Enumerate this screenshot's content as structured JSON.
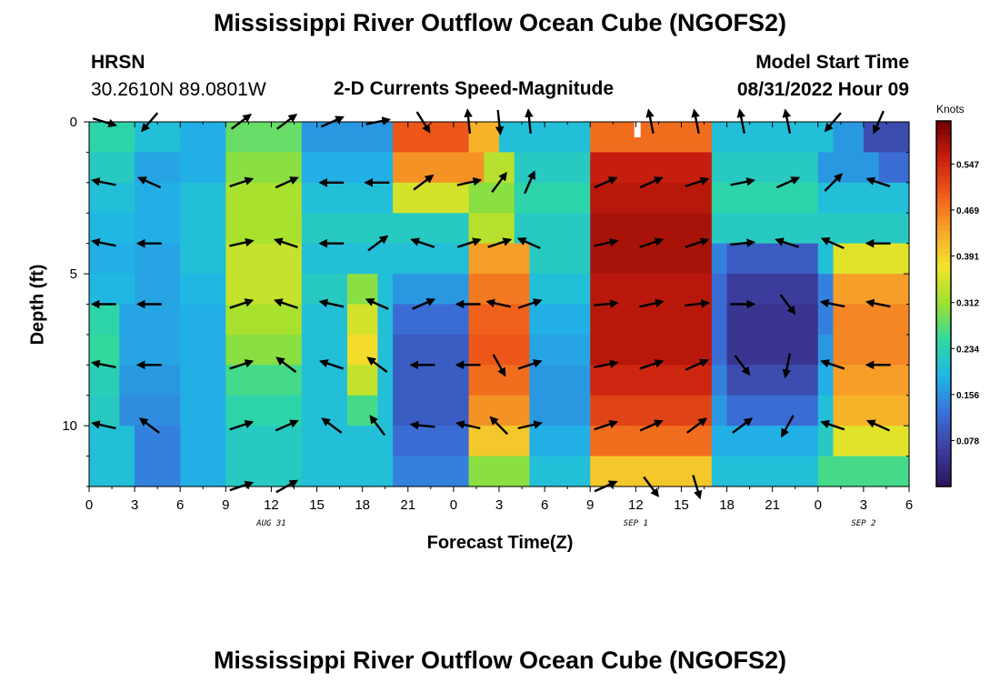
{
  "header": {
    "title": "Mississippi River Outflow Ocean Cube (NGOFS2)",
    "station_name": "HRSN",
    "station_coords": "30.2610N  89.0801W",
    "plot_title": "2-D Currents Speed-Magnitude",
    "model_start_label": "Model Start Time",
    "model_start_value": "08/31/2022 Hour 09"
  },
  "footer": {
    "title": "Mississippi River Outflow Ocean Cube (NGOFS2)"
  },
  "chart_data": {
    "type": "heatmap",
    "title": "2-D Currents Speed-Magnitude",
    "xlabel": "Forecast Time(Z)",
    "ylabel": "Depth (ft)",
    "x_ticks": [
      "0",
      "3",
      "6",
      "9",
      "12",
      "15",
      "18",
      "21",
      "0",
      "3",
      "6",
      "9",
      "12",
      "15",
      "18",
      "21",
      "0",
      "3",
      "6"
    ],
    "x_range_hours": [
      0,
      54
    ],
    "date_labels": [
      {
        "text": "AUG 31",
        "hour": 12
      },
      {
        "text": "SEP 1",
        "hour": 36
      },
      {
        "text": "SEP 2",
        "hour": 51
      }
    ],
    "y_ticks": [
      0,
      5,
      10
    ],
    "y_range_ft": [
      0,
      12
    ],
    "colorbar": {
      "unit": "Knots",
      "min": 0.0,
      "max": 0.62,
      "tick_values": [
        "0.547",
        "0.469",
        "0.391",
        "0.312",
        "0.234",
        "0.156",
        "0.078"
      ],
      "stops": [
        "#2a1359",
        "#3d3d9e",
        "#3a6fd8",
        "#1fb6e8",
        "#2fd8a0",
        "#9be030",
        "#f2e42a",
        "#f7a52a",
        "#ef5a1a",
        "#c81e0e",
        "#6e0000"
      ]
    },
    "depths_ft": [
      0.5,
      1.5,
      2.5,
      3.5,
      4.5,
      5.5,
      6.5,
      7.5,
      8.5,
      9.5,
      10.5,
      11.5
    ],
    "speed_segments": [
      [
        [
          0,
          3,
          0.24
        ],
        [
          3,
          6,
          0.2
        ],
        [
          6,
          9,
          0.18
        ],
        [
          9,
          14,
          0.28
        ],
        [
          14,
          20,
          0.16
        ],
        [
          20,
          25,
          0.5
        ],
        [
          25,
          27,
          0.42
        ],
        [
          27,
          33,
          0.2
        ],
        [
          33,
          41,
          0.48
        ],
        [
          41,
          49,
          0.2
        ],
        [
          49,
          51,
          0.16
        ],
        [
          51,
          54,
          0.08
        ]
      ],
      [
        [
          0,
          3,
          0.22
        ],
        [
          3,
          6,
          0.17
        ],
        [
          6,
          9,
          0.18
        ],
        [
          9,
          14,
          0.3
        ],
        [
          14,
          20,
          0.18
        ],
        [
          20,
          26,
          0.45
        ],
        [
          26,
          28,
          0.33
        ],
        [
          28,
          33,
          0.22
        ],
        [
          33,
          41,
          0.56
        ],
        [
          41,
          48,
          0.22
        ],
        [
          48,
          52,
          0.16
        ],
        [
          52,
          54,
          0.12
        ]
      ],
      [
        [
          0,
          3,
          0.2
        ],
        [
          3,
          6,
          0.18
        ],
        [
          6,
          9,
          0.2
        ],
        [
          9,
          14,
          0.32
        ],
        [
          14,
          20,
          0.2
        ],
        [
          20,
          25,
          0.35
        ],
        [
          25,
          28,
          0.3
        ],
        [
          28,
          33,
          0.24
        ],
        [
          33,
          41,
          0.57
        ],
        [
          41,
          48,
          0.24
        ],
        [
          48,
          54,
          0.2
        ]
      ],
      [
        [
          0,
          3,
          0.19
        ],
        [
          3,
          6,
          0.18
        ],
        [
          6,
          9,
          0.2
        ],
        [
          9,
          14,
          0.32
        ],
        [
          14,
          20,
          0.22
        ],
        [
          20,
          25,
          0.22
        ],
        [
          25,
          28,
          0.33
        ],
        [
          28,
          33,
          0.22
        ],
        [
          33,
          41,
          0.58
        ],
        [
          41,
          48,
          0.22
        ],
        [
          48,
          54,
          0.22
        ]
      ],
      [
        [
          0,
          3,
          0.18
        ],
        [
          3,
          6,
          0.17
        ],
        [
          6,
          9,
          0.2
        ],
        [
          9,
          14,
          0.34
        ],
        [
          14,
          20,
          0.2
        ],
        [
          20,
          25,
          0.2
        ],
        [
          25,
          29,
          0.44
        ],
        [
          29,
          33,
          0.22
        ],
        [
          33,
          41,
          0.58
        ],
        [
          41,
          42,
          0.14
        ],
        [
          42,
          48,
          0.1
        ],
        [
          48,
          49,
          0.2
        ],
        [
          49,
          54,
          0.36
        ]
      ],
      [
        [
          0,
          3,
          0.19
        ],
        [
          3,
          6,
          0.17
        ],
        [
          6,
          9,
          0.19
        ],
        [
          9,
          14,
          0.34
        ],
        [
          14,
          17,
          0.22
        ],
        [
          17,
          19,
          0.3
        ],
        [
          19,
          20,
          0.2
        ],
        [
          20,
          25,
          0.16
        ],
        [
          25,
          29,
          0.47
        ],
        [
          29,
          33,
          0.2
        ],
        [
          33,
          41,
          0.57
        ],
        [
          41,
          42,
          0.12
        ],
        [
          42,
          48,
          0.06
        ],
        [
          48,
          49,
          0.14
        ],
        [
          49,
          54,
          0.44
        ]
      ],
      [
        [
          0,
          2,
          0.24
        ],
        [
          2,
          6,
          0.17
        ],
        [
          6,
          9,
          0.18
        ],
        [
          9,
          14,
          0.32
        ],
        [
          14,
          17,
          0.2
        ],
        [
          17,
          19,
          0.35
        ],
        [
          19,
          20,
          0.2
        ],
        [
          20,
          25,
          0.12
        ],
        [
          25,
          29,
          0.49
        ],
        [
          29,
          33,
          0.18
        ],
        [
          33,
          41,
          0.57
        ],
        [
          41,
          42,
          0.12
        ],
        [
          42,
          48,
          0.05
        ],
        [
          48,
          49,
          0.14
        ],
        [
          49,
          54,
          0.46
        ]
      ],
      [
        [
          0,
          2,
          0.25
        ],
        [
          2,
          6,
          0.17
        ],
        [
          6,
          9,
          0.18
        ],
        [
          9,
          14,
          0.3
        ],
        [
          14,
          17,
          0.2
        ],
        [
          17,
          19,
          0.38
        ],
        [
          19,
          20,
          0.2
        ],
        [
          20,
          25,
          0.1
        ],
        [
          25,
          29,
          0.5
        ],
        [
          29,
          33,
          0.17
        ],
        [
          33,
          41,
          0.57
        ],
        [
          41,
          42,
          0.12
        ],
        [
          42,
          48,
          0.05
        ],
        [
          48,
          49,
          0.16
        ],
        [
          49,
          54,
          0.46
        ]
      ],
      [
        [
          0,
          2,
          0.23
        ],
        [
          2,
          6,
          0.16
        ],
        [
          6,
          9,
          0.18
        ],
        [
          9,
          14,
          0.26
        ],
        [
          14,
          17,
          0.2
        ],
        [
          17,
          19,
          0.34
        ],
        [
          19,
          20,
          0.2
        ],
        [
          20,
          25,
          0.1
        ],
        [
          25,
          29,
          0.48
        ],
        [
          29,
          33,
          0.16
        ],
        [
          33,
          41,
          0.55
        ],
        [
          41,
          42,
          0.14
        ],
        [
          42,
          48,
          0.08
        ],
        [
          48,
          49,
          0.18
        ],
        [
          49,
          54,
          0.44
        ]
      ],
      [
        [
          0,
          2,
          0.22
        ],
        [
          2,
          6,
          0.15
        ],
        [
          6,
          9,
          0.18
        ],
        [
          9,
          14,
          0.24
        ],
        [
          14,
          17,
          0.2
        ],
        [
          17,
          19,
          0.26
        ],
        [
          19,
          20,
          0.2
        ],
        [
          20,
          25,
          0.1
        ],
        [
          25,
          29,
          0.45
        ],
        [
          29,
          33,
          0.16
        ],
        [
          33,
          41,
          0.52
        ],
        [
          41,
          42,
          0.16
        ],
        [
          42,
          48,
          0.12
        ],
        [
          48,
          49,
          0.2
        ],
        [
          49,
          54,
          0.42
        ]
      ],
      [
        [
          0,
          3,
          0.2
        ],
        [
          3,
          6,
          0.14
        ],
        [
          6,
          9,
          0.18
        ],
        [
          9,
          14,
          0.22
        ],
        [
          14,
          20,
          0.2
        ],
        [
          20,
          25,
          0.12
        ],
        [
          25,
          29,
          0.4
        ],
        [
          29,
          33,
          0.18
        ],
        [
          33,
          41,
          0.48
        ],
        [
          41,
          48,
          0.18
        ],
        [
          48,
          49,
          0.22
        ],
        [
          49,
          54,
          0.36
        ]
      ],
      [
        [
          0,
          3,
          0.2
        ],
        [
          3,
          6,
          0.14
        ],
        [
          6,
          9,
          0.18
        ],
        [
          9,
          14,
          0.22
        ],
        [
          14,
          20,
          0.2
        ],
        [
          20,
          25,
          0.14
        ],
        [
          25,
          29,
          0.3
        ],
        [
          29,
          33,
          0.2
        ],
        [
          33,
          41,
          0.4
        ],
        [
          41,
          48,
          0.2
        ],
        [
          48,
          54,
          0.26
        ]
      ]
    ],
    "vector_rows_ft": [
      0,
      2,
      4,
      6,
      8,
      10,
      12
    ],
    "vector_cols_h": [
      1,
      4,
      10,
      13,
      16,
      19,
      22,
      25,
      27,
      29,
      34,
      37,
      40,
      43,
      46,
      49,
      52
    ],
    "vectors": [
      [
        [
          1,
          -0.3
        ],
        [
          -0.6,
          -0.7
        ],
        [
          0.8,
          0.6
        ],
        [
          0.8,
          0.6
        ],
        [
          0.9,
          0.4
        ],
        [
          1,
          0.2
        ],
        [
          0.5,
          -0.8
        ],
        [
          -0.1,
          1
        ],
        [
          0.1,
          -1
        ],
        [
          -0.1,
          1
        ],
        [
          0,
          0
        ],
        [
          -0.2,
          1
        ],
        [
          -0.2,
          1
        ],
        [
          -0.2,
          1
        ],
        [
          -0.2,
          1
        ],
        [
          -0.6,
          -0.7
        ],
        [
          -0.4,
          -0.9
        ]
      ],
      [
        [
          -1,
          0.2
        ],
        [
          -0.9,
          0.4
        ],
        [
          0.9,
          0.3
        ],
        [
          0.9,
          0.4
        ],
        [
          -1,
          0
        ],
        [
          -1,
          0
        ],
        [
          0.8,
          0.6
        ],
        [
          0.9,
          0.2
        ],
        [
          0.6,
          0.8
        ],
        [
          0.4,
          0.9
        ],
        [
          0.9,
          0.4
        ],
        [
          0.9,
          0.4
        ],
        [
          0.9,
          0.3
        ],
        [
          1,
          0.2
        ],
        [
          0.9,
          0.4
        ],
        [
          0.7,
          0.7
        ],
        [
          -0.9,
          0.3
        ]
      ],
      [
        [
          -1,
          0.2
        ],
        [
          -1,
          0
        ],
        [
          0.9,
          0.2
        ],
        [
          -0.9,
          0.3
        ],
        [
          -1,
          0
        ],
        [
          0.8,
          0.6
        ],
        [
          -0.9,
          0.3
        ],
        [
          0.9,
          0.3
        ],
        [
          0.9,
          0.3
        ],
        [
          -0.9,
          0.4
        ],
        [
          0.9,
          0.2
        ],
        [
          0.9,
          0.3
        ],
        [
          0.9,
          0.3
        ],
        [
          1,
          0.1
        ],
        [
          -0.9,
          0.3
        ],
        [
          -0.9,
          0.4
        ],
        [
          -1,
          0
        ]
      ],
      [
        [
          -1,
          0
        ],
        [
          -1,
          0
        ],
        [
          0.9,
          0.3
        ],
        [
          -0.9,
          0.3
        ],
        [
          -0.9,
          0.2
        ],
        [
          -0.9,
          0.4
        ],
        [
          0.9,
          0.4
        ],
        [
          -1,
          0
        ],
        [
          -0.9,
          0.2
        ],
        [
          0.9,
          0.3
        ],
        [
          1,
          0.1
        ],
        [
          0.9,
          0.2
        ],
        [
          0.9,
          0.1
        ],
        [
          1,
          0
        ],
        [
          0.6,
          -0.8
        ],
        [
          -1,
          0.2
        ],
        [
          -1,
          0.2
        ]
      ],
      [
        [
          -1,
          0.2
        ],
        [
          -1,
          0
        ],
        [
          0.9,
          0.3
        ],
        [
          -0.8,
          0.6
        ],
        [
          -0.9,
          0.3
        ],
        [
          -0.8,
          0.6
        ],
        [
          -1,
          0
        ],
        [
          -1,
          0
        ],
        [
          0.5,
          -0.9
        ],
        [
          0.9,
          0.3
        ],
        [
          1,
          0.2
        ],
        [
          0.9,
          0.3
        ],
        [
          0.9,
          0.4
        ],
        [
          0.6,
          -0.8
        ],
        [
          -0.2,
          -1
        ],
        [
          -0.9,
          0.3
        ],
        [
          -1,
          0
        ]
      ],
      [
        [
          -0.9,
          0.2
        ],
        [
          -0.8,
          0.6
        ],
        [
          0.9,
          0.3
        ],
        [
          0.9,
          0.4
        ],
        [
          -0.8,
          0.6
        ],
        [
          -0.6,
          0.8
        ],
        [
          -1,
          0.1
        ],
        [
          -0.9,
          0.2
        ],
        [
          -0.7,
          0.7
        ],
        [
          0.9,
          0.2
        ],
        [
          0.9,
          0.3
        ],
        [
          0.9,
          0.4
        ],
        [
          0.8,
          0.6
        ],
        [
          0.8,
          0.6
        ],
        [
          -0.5,
          -0.9
        ],
        [
          -0.9,
          0.3
        ],
        [
          -0.9,
          0.4
        ]
      ],
      [
        [
          0,
          0
        ],
        [
          0,
          0
        ],
        [
          0.9,
          0.3
        ],
        [
          0.9,
          0.5
        ],
        [
          0,
          0
        ],
        [
          0,
          0
        ],
        [
          0,
          0
        ],
        [
          0,
          0
        ],
        [
          0,
          0
        ],
        [
          0,
          0
        ],
        [
          0.9,
          0.4
        ],
        [
          0.6,
          -0.8
        ],
        [
          0.3,
          -1
        ],
        [
          0,
          0
        ],
        [
          0,
          0
        ],
        [
          0,
          0
        ],
        [
          0,
          0
        ]
      ]
    ]
  }
}
